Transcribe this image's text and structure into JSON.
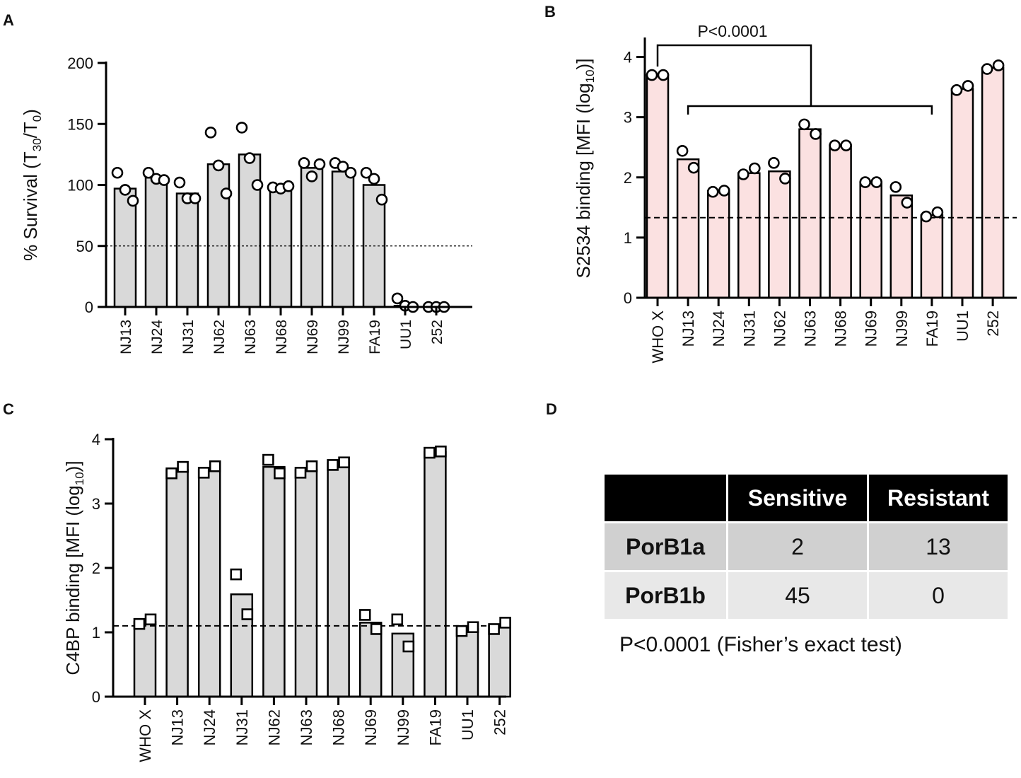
{
  "panels": {
    "A": {
      "letter": "A"
    },
    "B": {
      "letter": "B"
    },
    "C": {
      "letter": "C"
    },
    "D": {
      "letter": "D"
    }
  },
  "chart_data": [
    {
      "id": "A",
      "type": "bar",
      "ylabel_parts": [
        "% Survival (T",
        "30",
        "/T",
        "0",
        ")"
      ],
      "ylim": [
        0,
        200
      ],
      "yticks": [
        0,
        50,
        100,
        150,
        200
      ],
      "reference_line": 50,
      "bar_color": "#d9d9d9",
      "marker": "circle",
      "categories": [
        "NJ13",
        "NJ24",
        "NJ31",
        "NJ62",
        "NJ63",
        "NJ68",
        "NJ69",
        "NJ99",
        "FA19",
        "UU1",
        "252"
      ],
      "values": [
        97,
        106,
        93,
        117,
        125,
        97,
        114,
        111,
        100,
        1,
        0
      ],
      "points": [
        [
          110,
          96,
          87
        ],
        [
          110,
          105,
          104
        ],
        [
          102,
          89,
          89
        ],
        [
          143,
          116,
          93
        ],
        [
          147,
          122,
          100
        ],
        [
          98,
          97,
          99
        ],
        [
          118,
          107,
          117
        ],
        [
          118,
          115,
          110
        ],
        [
          110,
          105,
          88
        ],
        [
          7,
          1,
          0
        ],
        [
          0,
          0,
          0
        ]
      ]
    },
    {
      "id": "B",
      "type": "bar",
      "ylabel_parts": [
        "S2534 binding [MFI (log",
        "10",
        ")]"
      ],
      "ylim": [
        0,
        4.3
      ],
      "yticks": [
        0,
        1,
        2,
        3,
        4
      ],
      "reference_line": 1.33,
      "bar_color": "#fbe1e1",
      "marker": "circle",
      "categories": [
        "WHO X",
        "NJ13",
        "NJ24",
        "NJ31",
        "NJ62",
        "NJ63",
        "NJ68",
        "NJ69",
        "NJ99",
        "FA19",
        "UU1",
        "252"
      ],
      "values": [
        3.7,
        2.3,
        1.77,
        2.07,
        2.1,
        2.8,
        2.53,
        1.92,
        1.7,
        1.37,
        3.47,
        3.82
      ],
      "points": [
        [
          3.7,
          3.7
        ],
        [
          2.44,
          2.16
        ],
        [
          1.76,
          1.78
        ],
        [
          2.05,
          2.15
        ],
        [
          2.24,
          1.98
        ],
        [
          2.88,
          2.72
        ],
        [
          2.53,
          2.53
        ],
        [
          1.92,
          1.92
        ],
        [
          1.84,
          1.58
        ],
        [
          1.35,
          1.42
        ],
        [
          3.45,
          3.52
        ],
        [
          3.8,
          3.86
        ]
      ],
      "annotation": "P<0.0001"
    },
    {
      "id": "C",
      "type": "bar",
      "ylabel_parts": [
        "C4BP binding [MFI (log",
        "10",
        ")]"
      ],
      "ylim": [
        0,
        4
      ],
      "yticks": [
        0,
        1,
        2,
        3,
        4
      ],
      "reference_line": 1.1,
      "bar_color": "#d9d9d9",
      "marker": "square",
      "categories": [
        "WHO X",
        "NJ13",
        "NJ24",
        "NJ31",
        "NJ62",
        "NJ63",
        "NJ68",
        "NJ69",
        "NJ99",
        "FA19",
        "UU1",
        "252"
      ],
      "values": [
        1.16,
        3.52,
        3.52,
        1.59,
        3.57,
        3.52,
        3.63,
        1.15,
        0.98,
        3.8,
        1.05,
        1.1
      ],
      "points": [
        [
          1.13,
          1.2
        ],
        [
          3.47,
          3.57
        ],
        [
          3.48,
          3.58
        ],
        [
          1.9,
          1.28
        ],
        [
          3.68,
          3.47
        ],
        [
          3.48,
          3.58
        ],
        [
          3.6,
          3.64
        ],
        [
          1.27,
          1.05
        ],
        [
          1.2,
          0.78
        ],
        [
          3.79,
          3.81
        ],
        [
          1.02,
          1.08
        ],
        [
          1.05,
          1.15
        ]
      ]
    }
  ],
  "table": {
    "headers": [
      "",
      "Sensitive",
      "Resistant"
    ],
    "rows": [
      {
        "label": "PorB1a",
        "sensitive": "2",
        "resistant": "13"
      },
      {
        "label": "PorB1b",
        "sensitive": "45",
        "resistant": "0"
      }
    ],
    "footnote": "P<0.0001 (Fisher’s exact test)"
  }
}
